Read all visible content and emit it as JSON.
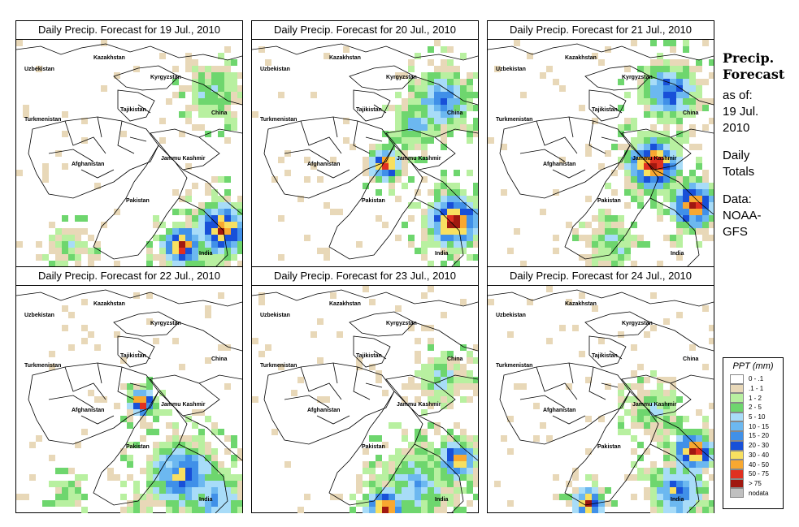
{
  "panels": [
    {
      "title": "Daily Precip. Forecast for  19 Jul., 2010"
    },
    {
      "title": "Daily Precip. Forecast for  20 Jul., 2010"
    },
    {
      "title": "Daily Precip. Forecast for  21 Jul., 2010"
    },
    {
      "title": "Daily Precip. Forecast for  22 Jul., 2010"
    },
    {
      "title": "Daily Precip. Forecast for  23 Jul., 2010"
    },
    {
      "title": "Daily Precip. Forecast for  24 Jul., 2010"
    }
  ],
  "map_labels": {
    "kazakhstan": "Kazakhstan",
    "uzbekistan": "Uzbekistan",
    "kyrgyzstan": "Kyrgyzstan",
    "tajikistan": "Tajikistan",
    "china": "China",
    "turkmenistan": "Turkmenistan",
    "jammu_kashmir": "Jammu Kashmir",
    "afghanistan": "Afghanistan",
    "pakistan": "Pakistan",
    "india": "India"
  },
  "side_info": {
    "title_line1": "Precip.",
    "title_line2": "Forecast",
    "asof_line1": "as of:",
    "asof_line2": "19 Jul.",
    "asof_line3": "2010",
    "totals_line1": "Daily",
    "totals_line2": "Totals",
    "data_line1": "Data:",
    "data_line2": "NOAA-",
    "data_line3": "GFS"
  },
  "legend": {
    "title": "PPT (mm)",
    "items": [
      {
        "label": "0 - .1",
        "color": "#ffffff"
      },
      {
        "label": ".1 - 1",
        "color": "#e8d8b8"
      },
      {
        "label": "1 - 2",
        "color": "#b8f0a0"
      },
      {
        "label": "2 - 5",
        "color": "#6ed66e"
      },
      {
        "label": "5 - 10",
        "color": "#a8dcf8"
      },
      {
        "label": "10 - 15",
        "color": "#6cb8f0"
      },
      {
        "label": "15 - 20",
        "color": "#4090e8"
      },
      {
        "label": "20 - 30",
        "color": "#1850d8"
      },
      {
        "label": "30 - 40",
        "color": "#f8e060"
      },
      {
        "label": "40 - 50",
        "color": "#f8a830"
      },
      {
        "label": "50 - 75",
        "color": "#e03020"
      },
      {
        "label": "> 75",
        "color": "#a01810"
      },
      {
        "label": "nodata",
        "color": "#c0c0c0"
      }
    ]
  }
}
